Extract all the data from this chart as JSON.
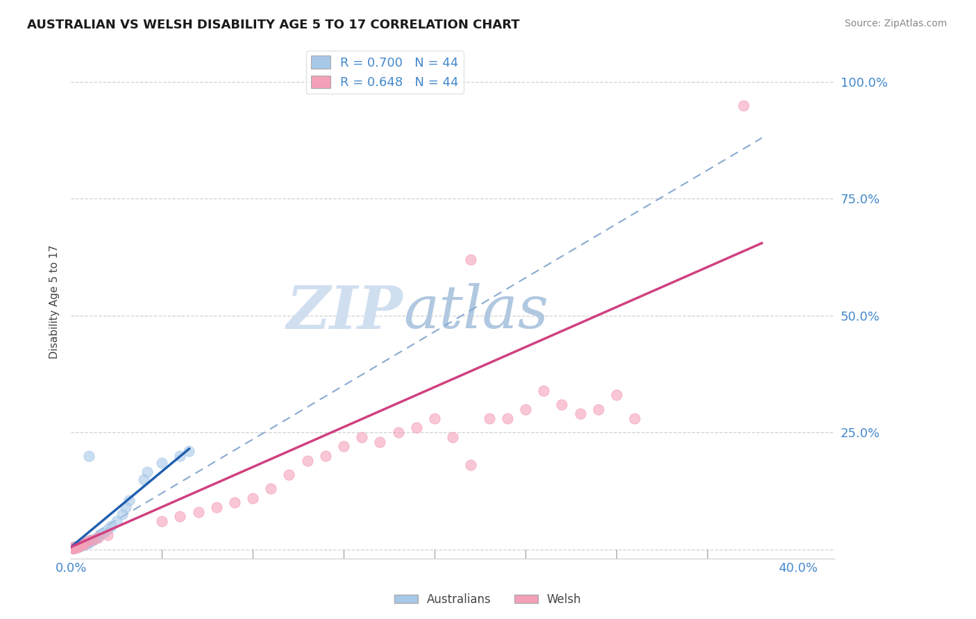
{
  "title": "AUSTRALIAN VS WELSH DISABILITY AGE 5 TO 17 CORRELATION CHART",
  "source": "Source: ZipAtlas.com",
  "ylabel_label": "Disability Age 5 to 17",
  "legend_label1": "Australians",
  "legend_label2": "Welsh",
  "R1": 0.7,
  "R2": 0.648,
  "N1": 44,
  "N2": 44,
  "blue_scatter_color": "#a8c8e8",
  "pink_scatter_color": "#f4a0b8",
  "blue_line_color": "#2060b0",
  "pink_line_color": "#d04080",
  "dash_line_color": "#88aad0",
  "grid_color": "#d0d0d0",
  "background_color": "#ffffff",
  "title_color": "#1a1a1a",
  "source_color": "#888888",
  "tick_color": "#4488cc",
  "watermark_zip_color": "#d0dff0",
  "watermark_atlas_color": "#b0c8e0",
  "xlim": [
    0.0,
    0.42
  ],
  "ylim": [
    -0.02,
    1.08
  ],
  "au_x": [
    0.001,
    0.001,
    0.001,
    0.001,
    0.002,
    0.002,
    0.002,
    0.003,
    0.003,
    0.003,
    0.003,
    0.004,
    0.004,
    0.005,
    0.005,
    0.005,
    0.006,
    0.006,
    0.007,
    0.007,
    0.008,
    0.008,
    0.009,
    0.009,
    0.01,
    0.01,
    0.011,
    0.012,
    0.013,
    0.014,
    0.016,
    0.018,
    0.02,
    0.022,
    0.025,
    0.028,
    0.03,
    0.032,
    0.04,
    0.042,
    0.05,
    0.06,
    0.065,
    0.01
  ],
  "au_y": [
    0.002,
    0.003,
    0.003,
    0.004,
    0.003,
    0.004,
    0.005,
    0.004,
    0.005,
    0.006,
    0.007,
    0.006,
    0.007,
    0.007,
    0.008,
    0.009,
    0.008,
    0.01,
    0.01,
    0.012,
    0.012,
    0.014,
    0.013,
    0.015,
    0.015,
    0.017,
    0.018,
    0.02,
    0.022,
    0.025,
    0.03,
    0.035,
    0.042,
    0.05,
    0.06,
    0.075,
    0.09,
    0.105,
    0.15,
    0.165,
    0.185,
    0.2,
    0.21,
    0.2
  ],
  "wl_x": [
    0.001,
    0.001,
    0.002,
    0.002,
    0.003,
    0.003,
    0.004,
    0.005,
    0.006,
    0.007,
    0.008,
    0.01,
    0.012,
    0.015,
    0.02,
    0.05,
    0.06,
    0.07,
    0.08,
    0.09,
    0.1,
    0.11,
    0.12,
    0.13,
    0.14,
    0.15,
    0.16,
    0.17,
    0.18,
    0.19,
    0.2,
    0.21,
    0.22,
    0.23,
    0.24,
    0.25,
    0.26,
    0.27,
    0.28,
    0.29,
    0.3,
    0.31,
    0.22,
    0.37
  ],
  "wl_y": [
    0.002,
    0.003,
    0.003,
    0.005,
    0.004,
    0.006,
    0.006,
    0.008,
    0.01,
    0.012,
    0.015,
    0.018,
    0.02,
    0.025,
    0.03,
    0.06,
    0.07,
    0.08,
    0.09,
    0.1,
    0.11,
    0.13,
    0.16,
    0.19,
    0.2,
    0.22,
    0.24,
    0.23,
    0.25,
    0.26,
    0.28,
    0.24,
    0.18,
    0.28,
    0.28,
    0.3,
    0.34,
    0.31,
    0.29,
    0.3,
    0.33,
    0.28,
    0.62,
    0.95
  ]
}
